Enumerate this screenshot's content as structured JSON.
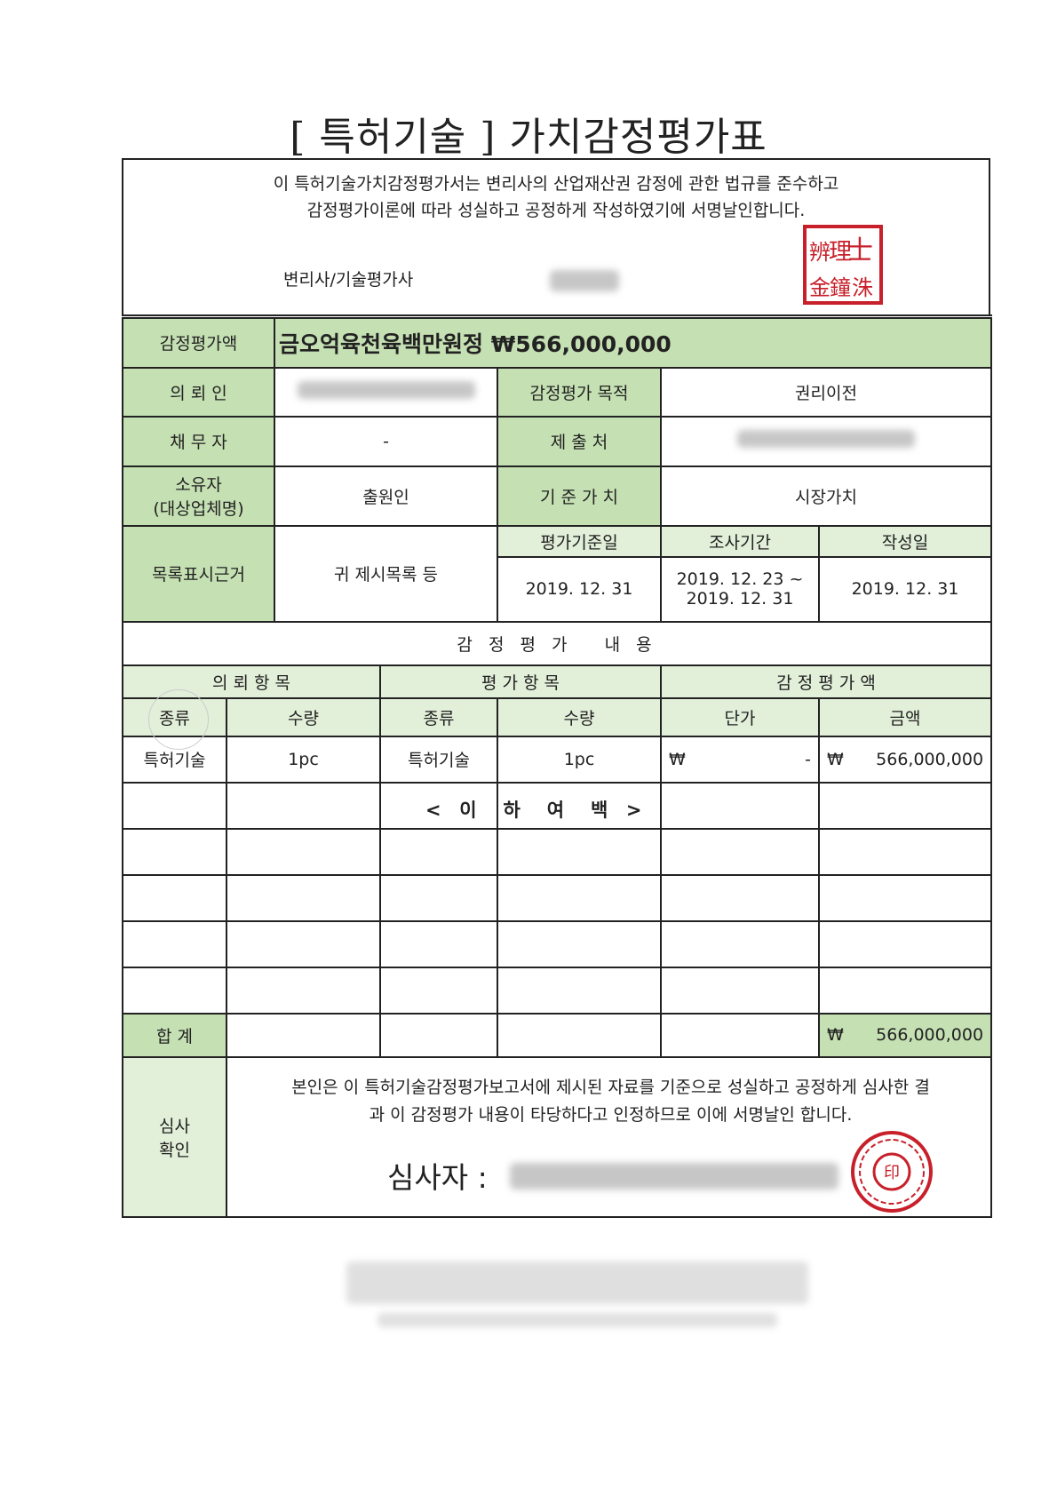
{
  "title": "[ 특허기술 ] 가치감정평가표",
  "header": {
    "declaration_line1": "이 특허기술가치감정평가서는 변리사의 산업재산권 감정에 관한 법규를 준수하고",
    "declaration_line2": "감정평가이론에 따라 성실하고 공정하게 작성하였기에 서명날인합니다.",
    "signer_label": "변리사/기술평가사",
    "seal_text": "辨理士金鐘洙",
    "seal_color": "#c8202a"
  },
  "summary": {
    "amount_label": "감정평가액",
    "amount_value": "금오억육천육백만원정 ₩566,000,000",
    "client_label": "의 뢰 인",
    "purpose_label": "감정평가 목적",
    "purpose_value": "권리이전",
    "debtor_label": "채 무 자",
    "debtor_value": "-",
    "submit_label": "제 출 처",
    "owner_label_1": "소유자",
    "owner_label_2": "(대상업체명)",
    "owner_value": "출원인",
    "basis_label": "기 준 가 치",
    "basis_value": "시장가치",
    "list_label": "목록표시근거",
    "list_value": "귀 제시목록 등",
    "eval_date_label": "평가기준일",
    "eval_date_value": "2019. 12. 31",
    "survey_label": "조사기간",
    "survey_value_1": "2019. 12. 23 ~",
    "survey_value_2": "2019. 12. 31",
    "written_label": "작성일",
    "written_value": "2019. 12. 31"
  },
  "content": {
    "section_title": "감 정 평 가   내 용",
    "group_request": "의 뢰 항 목",
    "group_eval": "평 가 항 목",
    "group_amount": "감 정 평 가 액",
    "columns": [
      "종류",
      "수량",
      "종류",
      "수량",
      "단가",
      "금액"
    ],
    "row": {
      "req_type": "특허기술",
      "req_qty": "1pc",
      "eval_type": "특허기술",
      "eval_qty": "1pc",
      "unit_currency": "₩",
      "unit_price": "-",
      "amount_currency": "₩",
      "amount": "566,000,000"
    },
    "blank_note": "<  이   하   여   백  >",
    "total_label": "합 계",
    "total_currency": "₩",
    "total_amount": "566,000,000"
  },
  "review": {
    "label_1": "심사",
    "label_2": "확인",
    "text_line1": "본인은 이 특허기술감정평가보고서에 제시된 자료를 기준으로 성실하고 공정하게 심사한 결",
    "text_line2": "과 이 감정평가 내용이 타당하다고 인정하므로 이에 서명날인 합니다.",
    "reviewer_label": "심사자 :"
  },
  "colors": {
    "header_green": "#c5e0b3",
    "light_green": "#e2efd9",
    "seal_red": "#c8202a"
  }
}
